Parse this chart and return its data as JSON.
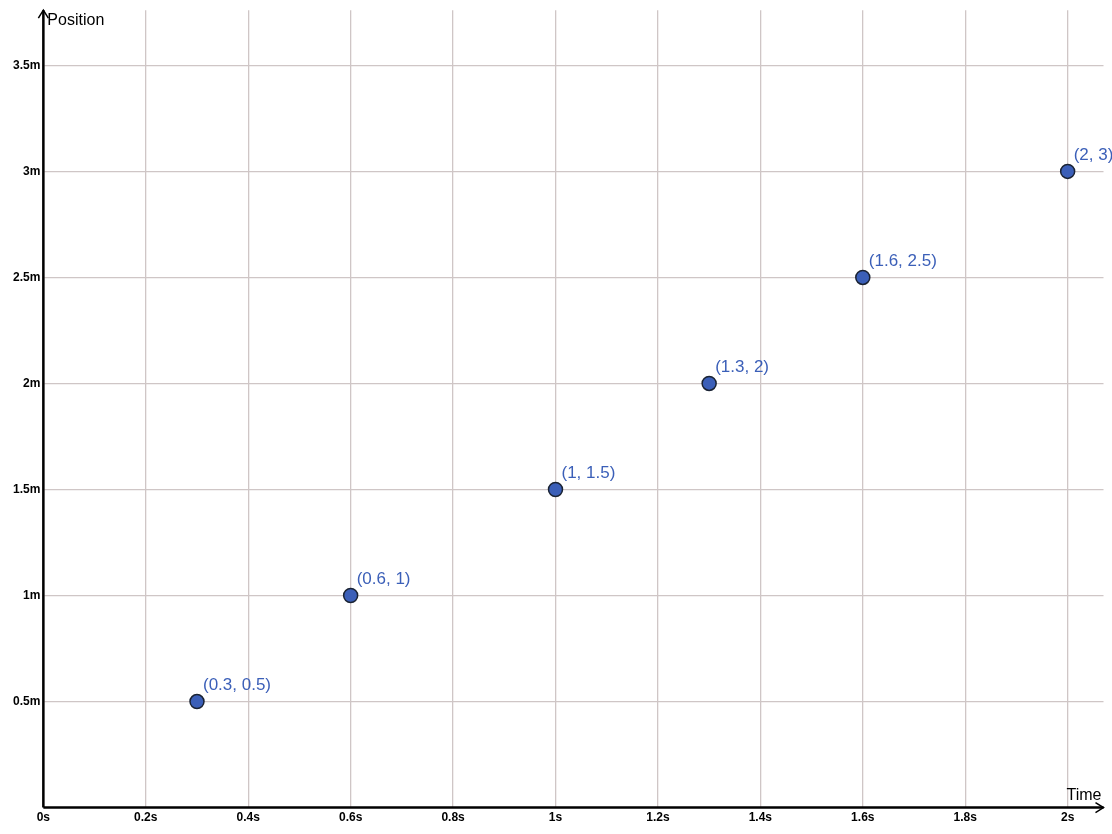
{
  "chart_data": {
    "type": "scatter",
    "xlabel": "Time",
    "ylabel": "Position",
    "grid": true,
    "marker": "circle",
    "xlim": [
      0,
      2.07
    ],
    "ylim": [
      0,
      3.76
    ],
    "xticks": [
      {
        "value": 0,
        "label": "0s"
      },
      {
        "value": 0.2,
        "label": "0.2s"
      },
      {
        "value": 0.4,
        "label": "0.4s"
      },
      {
        "value": 0.6,
        "label": "0.6s"
      },
      {
        "value": 0.8,
        "label": "0.8s"
      },
      {
        "value": 1,
        "label": "1s"
      },
      {
        "value": 1.2,
        "label": "1.2s"
      },
      {
        "value": 1.4,
        "label": "1.4s"
      },
      {
        "value": 1.6,
        "label": "1.6s"
      },
      {
        "value": 1.8,
        "label": "1.8s"
      },
      {
        "value": 2,
        "label": "2s"
      }
    ],
    "yticks": [
      {
        "value": 0.5,
        "label": "0.5m"
      },
      {
        "value": 1,
        "label": "1m"
      },
      {
        "value": 1.5,
        "label": "1.5m"
      },
      {
        "value": 2,
        "label": "2m"
      },
      {
        "value": 2.5,
        "label": "2.5m"
      },
      {
        "value": 3,
        "label": "3m"
      },
      {
        "value": 3.5,
        "label": "3.5m"
      }
    ],
    "series": [
      {
        "color": "#3b5fb8",
        "x": [
          0.3,
          0.6,
          1,
          1.3,
          1.6,
          2
        ],
        "values": [
          0.5,
          1,
          1.5,
          2,
          2.5,
          3
        ],
        "value_labels": [
          "(0.3, 0.5)",
          "(0.6, 1)",
          "(1, 1.5)",
          "(1.3, 2)",
          "(1.6, 2.5)",
          "(2, 3)"
        ]
      }
    ]
  }
}
